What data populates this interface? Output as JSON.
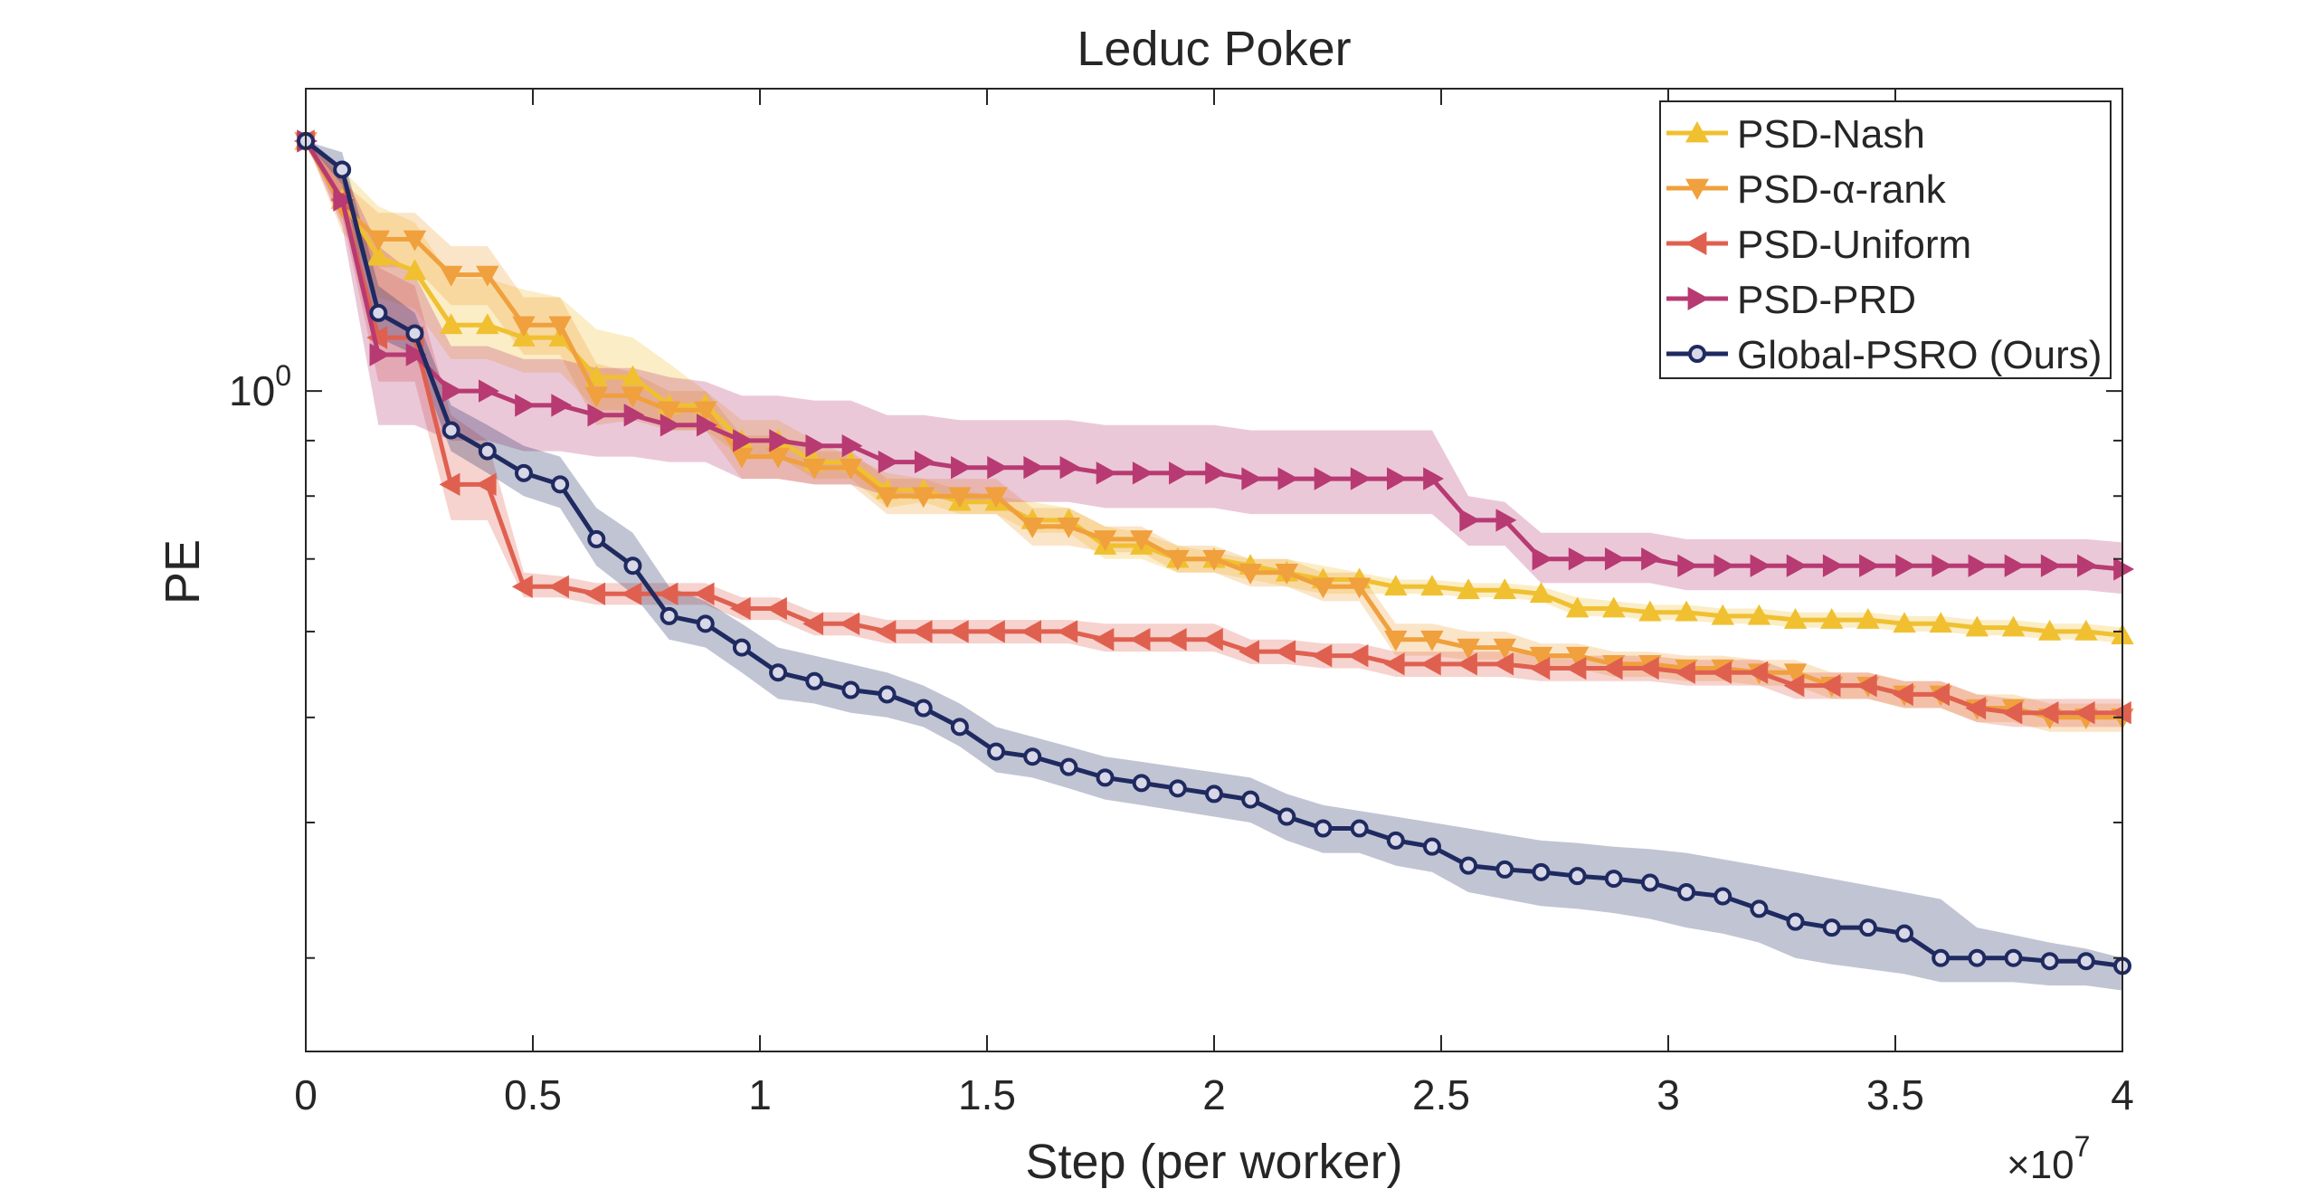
{
  "chart_data": {
    "type": "line",
    "title": "Leduc Poker",
    "xlabel": "Step (per worker)",
    "ylabel": "PE",
    "x_exponent_label": "×10",
    "x_exponent_power": "7",
    "xlim": [
      0,
      4
    ],
    "ylim": [
      0.246,
      1.9
    ],
    "yscale": "log",
    "grid": false,
    "legend_position": "top-right",
    "x_ticks": [
      0,
      0.5,
      1,
      1.5,
      2,
      2.5,
      3,
      3.5,
      4
    ],
    "x_tick_labels": [
      "0",
      "0.5",
      "1",
      "1.5",
      "2",
      "2.5",
      "3",
      "3.5",
      "4"
    ],
    "y_ticks": [
      1.0
    ],
    "y_tick_labels": [
      "10",
      "0"
    ],
    "series": [
      {
        "name": "PSD-Nash",
        "color": "#f0c030",
        "marker": "triangle-up",
        "x": [
          0,
          0.08,
          0.16,
          0.24,
          0.32,
          0.4,
          0.48,
          0.56,
          0.64,
          0.72,
          0.8,
          0.88,
          0.96,
          1.04,
          1.12,
          1.2,
          1.28,
          1.36,
          1.44,
          1.52,
          1.6,
          1.68,
          1.76,
          1.84,
          1.92,
          2.0,
          2.08,
          2.16,
          2.24,
          2.32,
          2.4,
          2.48,
          2.56,
          2.64,
          2.72,
          2.8,
          2.88,
          2.96,
          3.04,
          3.12,
          3.2,
          3.28,
          3.36,
          3.44,
          3.52,
          3.6,
          3.68,
          3.76,
          3.84,
          3.92,
          4.0
        ],
        "y": [
          1.7,
          1.5,
          1.33,
          1.29,
          1.15,
          1.15,
          1.12,
          1.12,
          1.03,
          1.03,
          0.97,
          0.97,
          0.9,
          0.9,
          0.86,
          0.86,
          0.81,
          0.81,
          0.79,
          0.79,
          0.76,
          0.76,
          0.72,
          0.72,
          0.7,
          0.7,
          0.69,
          0.68,
          0.67,
          0.67,
          0.66,
          0.66,
          0.655,
          0.655,
          0.65,
          0.63,
          0.63,
          0.625,
          0.625,
          0.62,
          0.62,
          0.615,
          0.615,
          0.615,
          0.61,
          0.61,
          0.605,
          0.605,
          0.6,
          0.6,
          0.595
        ],
        "band_upper": [
          1.7,
          1.6,
          1.48,
          1.43,
          1.27,
          1.27,
          1.24,
          1.22,
          1.14,
          1.12,
          1.06,
          1.0,
          0.94,
          0.94,
          0.9,
          0.87,
          0.84,
          0.83,
          0.81,
          0.8,
          0.79,
          0.78,
          0.75,
          0.74,
          0.72,
          0.71,
          0.7,
          0.7,
          0.69,
          0.68,
          0.67,
          0.67,
          0.665,
          0.665,
          0.66,
          0.645,
          0.64,
          0.635,
          0.635,
          0.63,
          0.63,
          0.625,
          0.625,
          0.625,
          0.62,
          0.62,
          0.615,
          0.615,
          0.61,
          0.61,
          0.605
        ],
        "band_lower": [
          1.7,
          1.45,
          1.22,
          1.19,
          1.07,
          1.07,
          1.04,
          1.04,
          0.96,
          0.96,
          0.92,
          0.92,
          0.87,
          0.87,
          0.83,
          0.83,
          0.78,
          0.79,
          0.77,
          0.77,
          0.74,
          0.74,
          0.7,
          0.7,
          0.68,
          0.68,
          0.67,
          0.66,
          0.65,
          0.65,
          0.65,
          0.65,
          0.645,
          0.645,
          0.64,
          0.62,
          0.62,
          0.615,
          0.615,
          0.61,
          0.61,
          0.605,
          0.605,
          0.605,
          0.6,
          0.6,
          0.595,
          0.595,
          0.59,
          0.59,
          0.585
        ]
      },
      {
        "name": "PSD-α-rank",
        "color": "#f0a03c",
        "marker": "triangle-down",
        "x": [
          0,
          0.08,
          0.16,
          0.24,
          0.32,
          0.4,
          0.48,
          0.56,
          0.64,
          0.72,
          0.8,
          0.88,
          0.96,
          1.04,
          1.12,
          1.2,
          1.28,
          1.36,
          1.44,
          1.52,
          1.6,
          1.68,
          1.76,
          1.84,
          1.92,
          2.0,
          2.08,
          2.16,
          2.24,
          2.32,
          2.4,
          2.48,
          2.56,
          2.64,
          2.72,
          2.8,
          2.88,
          2.96,
          3.04,
          3.12,
          3.2,
          3.28,
          3.36,
          3.44,
          3.52,
          3.6,
          3.68,
          3.76,
          3.84,
          3.92,
          4.0
        ],
        "y": [
          1.7,
          1.48,
          1.38,
          1.38,
          1.28,
          1.28,
          1.15,
          1.15,
          0.99,
          0.99,
          0.96,
          0.96,
          0.87,
          0.87,
          0.85,
          0.85,
          0.8,
          0.8,
          0.8,
          0.8,
          0.75,
          0.75,
          0.73,
          0.73,
          0.7,
          0.7,
          0.68,
          0.68,
          0.66,
          0.66,
          0.59,
          0.59,
          0.58,
          0.58,
          0.57,
          0.57,
          0.56,
          0.56,
          0.555,
          0.555,
          0.55,
          0.55,
          0.535,
          0.535,
          0.525,
          0.525,
          0.51,
          0.51,
          0.5,
          0.5,
          0.5
        ],
        "band_upper": [
          1.7,
          1.56,
          1.46,
          1.46,
          1.36,
          1.36,
          1.22,
          1.22,
          1.06,
          1.04,
          1.0,
          1.0,
          0.91,
          0.91,
          0.88,
          0.88,
          0.83,
          0.83,
          0.83,
          0.83,
          0.78,
          0.78,
          0.75,
          0.75,
          0.72,
          0.72,
          0.7,
          0.7,
          0.68,
          0.68,
          0.61,
          0.61,
          0.6,
          0.6,
          0.585,
          0.585,
          0.575,
          0.575,
          0.57,
          0.57,
          0.565,
          0.565,
          0.55,
          0.55,
          0.54,
          0.54,
          0.525,
          0.525,
          0.515,
          0.515,
          0.515
        ],
        "band_lower": [
          1.7,
          1.4,
          1.3,
          1.3,
          1.2,
          1.2,
          1.08,
          1.08,
          0.93,
          0.94,
          0.92,
          0.92,
          0.83,
          0.83,
          0.82,
          0.82,
          0.77,
          0.77,
          0.77,
          0.77,
          0.72,
          0.72,
          0.71,
          0.71,
          0.68,
          0.68,
          0.66,
          0.66,
          0.64,
          0.64,
          0.57,
          0.57,
          0.565,
          0.565,
          0.555,
          0.555,
          0.545,
          0.545,
          0.54,
          0.54,
          0.535,
          0.535,
          0.52,
          0.52,
          0.51,
          0.51,
          0.495,
          0.495,
          0.485,
          0.485,
          0.485
        ]
      },
      {
        "name": "PSD-Uniform",
        "color": "#e06050",
        "marker": "triangle-left",
        "x": [
          0,
          0.08,
          0.16,
          0.24,
          0.32,
          0.4,
          0.48,
          0.56,
          0.64,
          0.72,
          0.8,
          0.88,
          0.96,
          1.04,
          1.12,
          1.2,
          1.28,
          1.36,
          1.44,
          1.52,
          1.6,
          1.68,
          1.76,
          1.84,
          1.92,
          2.0,
          2.08,
          2.16,
          2.24,
          2.32,
          2.4,
          2.48,
          2.56,
          2.64,
          2.72,
          2.8,
          2.88,
          2.96,
          3.04,
          3.12,
          3.2,
          3.28,
          3.36,
          3.44,
          3.52,
          3.6,
          3.68,
          3.76,
          3.84,
          3.92,
          4.0
        ],
        "y": [
          1.7,
          1.5,
          1.12,
          1.12,
          0.82,
          0.82,
          0.66,
          0.66,
          0.65,
          0.65,
          0.65,
          0.65,
          0.63,
          0.63,
          0.61,
          0.61,
          0.6,
          0.6,
          0.6,
          0.6,
          0.6,
          0.6,
          0.59,
          0.59,
          0.59,
          0.59,
          0.575,
          0.575,
          0.57,
          0.57,
          0.56,
          0.56,
          0.56,
          0.56,
          0.555,
          0.555,
          0.555,
          0.555,
          0.55,
          0.55,
          0.55,
          0.535,
          0.535,
          0.535,
          0.525,
          0.525,
          0.51,
          0.505,
          0.505,
          0.505,
          0.505
        ],
        "band_upper": [
          1.7,
          1.58,
          1.3,
          1.25,
          0.95,
          0.9,
          0.68,
          0.675,
          0.665,
          0.665,
          0.665,
          0.665,
          0.645,
          0.645,
          0.625,
          0.625,
          0.615,
          0.615,
          0.615,
          0.615,
          0.615,
          0.615,
          0.61,
          0.61,
          0.61,
          0.61,
          0.59,
          0.59,
          0.585,
          0.585,
          0.575,
          0.575,
          0.575,
          0.575,
          0.57,
          0.57,
          0.57,
          0.57,
          0.565,
          0.565,
          0.565,
          0.55,
          0.55,
          0.55,
          0.54,
          0.54,
          0.525,
          0.52,
          0.52,
          0.52,
          0.52
        ],
        "band_lower": [
          1.7,
          1.45,
          1.02,
          1.02,
          0.76,
          0.76,
          0.645,
          0.645,
          0.635,
          0.635,
          0.635,
          0.635,
          0.615,
          0.615,
          0.595,
          0.595,
          0.585,
          0.585,
          0.585,
          0.585,
          0.585,
          0.585,
          0.575,
          0.575,
          0.575,
          0.575,
          0.56,
          0.56,
          0.555,
          0.555,
          0.545,
          0.545,
          0.545,
          0.545,
          0.54,
          0.54,
          0.54,
          0.54,
          0.535,
          0.535,
          0.535,
          0.52,
          0.52,
          0.52,
          0.51,
          0.51,
          0.495,
          0.49,
          0.49,
          0.49,
          0.49
        ]
      },
      {
        "name": "PSD-PRD",
        "color": "#b83a72",
        "marker": "triangle-right",
        "x": [
          0,
          0.08,
          0.16,
          0.24,
          0.32,
          0.4,
          0.48,
          0.56,
          0.64,
          0.72,
          0.8,
          0.88,
          0.96,
          1.04,
          1.12,
          1.2,
          1.28,
          1.36,
          1.44,
          1.52,
          1.6,
          1.68,
          1.76,
          1.84,
          1.92,
          2.0,
          2.08,
          2.16,
          2.24,
          2.32,
          2.4,
          2.48,
          2.56,
          2.64,
          2.72,
          2.8,
          2.88,
          2.96,
          3.04,
          3.12,
          3.2,
          3.28,
          3.36,
          3.44,
          3.52,
          3.6,
          3.68,
          3.76,
          3.84,
          3.92,
          4.0
        ],
        "y": [
          1.7,
          1.5,
          1.08,
          1.08,
          1.0,
          1.0,
          0.97,
          0.97,
          0.95,
          0.95,
          0.93,
          0.93,
          0.9,
          0.9,
          0.89,
          0.89,
          0.86,
          0.86,
          0.85,
          0.85,
          0.85,
          0.85,
          0.84,
          0.84,
          0.84,
          0.84,
          0.83,
          0.83,
          0.83,
          0.83,
          0.83,
          0.83,
          0.76,
          0.76,
          0.7,
          0.7,
          0.7,
          0.7,
          0.69,
          0.69,
          0.69,
          0.69,
          0.69,
          0.69,
          0.69,
          0.69,
          0.69,
          0.69,
          0.69,
          0.69,
          0.685
        ],
        "band_upper": [
          1.7,
          1.6,
          1.36,
          1.28,
          1.1,
          1.1,
          1.07,
          1.07,
          1.05,
          1.05,
          1.03,
          1.02,
          0.99,
          0.99,
          0.98,
          0.98,
          0.95,
          0.95,
          0.94,
          0.94,
          0.94,
          0.94,
          0.93,
          0.93,
          0.93,
          0.93,
          0.92,
          0.92,
          0.92,
          0.92,
          0.92,
          0.92,
          0.8,
          0.79,
          0.74,
          0.74,
          0.74,
          0.74,
          0.73,
          0.73,
          0.73,
          0.73,
          0.73,
          0.73,
          0.73,
          0.73,
          0.73,
          0.73,
          0.73,
          0.73,
          0.725
        ],
        "band_lower": [
          1.7,
          1.42,
          0.93,
          0.93,
          0.9,
          0.9,
          0.88,
          0.88,
          0.87,
          0.87,
          0.86,
          0.86,
          0.83,
          0.83,
          0.82,
          0.82,
          0.8,
          0.8,
          0.79,
          0.79,
          0.79,
          0.79,
          0.78,
          0.78,
          0.78,
          0.78,
          0.77,
          0.77,
          0.77,
          0.77,
          0.77,
          0.77,
          0.72,
          0.72,
          0.665,
          0.665,
          0.665,
          0.665,
          0.655,
          0.655,
          0.655,
          0.655,
          0.655,
          0.655,
          0.655,
          0.655,
          0.655,
          0.655,
          0.655,
          0.655,
          0.65
        ]
      },
      {
        "name": "Global-PSRO (Ours)",
        "color": "#1f2a60",
        "marker": "circle",
        "x": [
          0,
          0.08,
          0.16,
          0.24,
          0.32,
          0.4,
          0.48,
          0.56,
          0.64,
          0.72,
          0.8,
          0.88,
          0.96,
          1.04,
          1.12,
          1.2,
          1.28,
          1.36,
          1.44,
          1.52,
          1.6,
          1.68,
          1.76,
          1.84,
          1.92,
          2.0,
          2.08,
          2.16,
          2.24,
          2.32,
          2.4,
          2.48,
          2.56,
          2.64,
          2.72,
          2.8,
          2.88,
          2.96,
          3.04,
          3.12,
          3.2,
          3.28,
          3.36,
          3.44,
          3.52,
          3.6,
          3.68,
          3.76,
          3.84,
          3.92,
          4.0
        ],
        "y": [
          1.7,
          1.6,
          1.18,
          1.13,
          0.92,
          0.88,
          0.84,
          0.82,
          0.73,
          0.69,
          0.62,
          0.61,
          0.58,
          0.55,
          0.54,
          0.53,
          0.525,
          0.51,
          0.49,
          0.465,
          0.46,
          0.45,
          0.44,
          0.435,
          0.43,
          0.425,
          0.42,
          0.405,
          0.395,
          0.395,
          0.385,
          0.38,
          0.365,
          0.362,
          0.36,
          0.357,
          0.355,
          0.352,
          0.345,
          0.342,
          0.333,
          0.324,
          0.32,
          0.32,
          0.316,
          0.3,
          0.3,
          0.3,
          0.298,
          0.298,
          0.295
        ],
        "band_upper": [
          1.7,
          1.66,
          1.25,
          1.18,
          0.97,
          0.93,
          0.89,
          0.87,
          0.78,
          0.74,
          0.66,
          0.64,
          0.61,
          0.58,
          0.57,
          0.56,
          0.55,
          0.535,
          0.515,
          0.49,
          0.48,
          0.47,
          0.46,
          0.455,
          0.45,
          0.445,
          0.44,
          0.425,
          0.415,
          0.41,
          0.405,
          0.4,
          0.395,
          0.39,
          0.385,
          0.383,
          0.38,
          0.378,
          0.375,
          0.37,
          0.365,
          0.36,
          0.355,
          0.35,
          0.345,
          0.34,
          0.32,
          0.315,
          0.31,
          0.306,
          0.3
        ],
        "band_lower": [
          1.7,
          1.55,
          1.12,
          1.08,
          0.88,
          0.84,
          0.8,
          0.78,
          0.69,
          0.65,
          0.59,
          0.58,
          0.55,
          0.52,
          0.515,
          0.505,
          0.5,
          0.49,
          0.47,
          0.445,
          0.44,
          0.43,
          0.42,
          0.415,
          0.41,
          0.405,
          0.4,
          0.385,
          0.375,
          0.375,
          0.365,
          0.36,
          0.345,
          0.34,
          0.335,
          0.333,
          0.33,
          0.326,
          0.32,
          0.316,
          0.31,
          0.3,
          0.296,
          0.293,
          0.29,
          0.285,
          0.285,
          0.285,
          0.283,
          0.283,
          0.28
        ]
      }
    ]
  }
}
